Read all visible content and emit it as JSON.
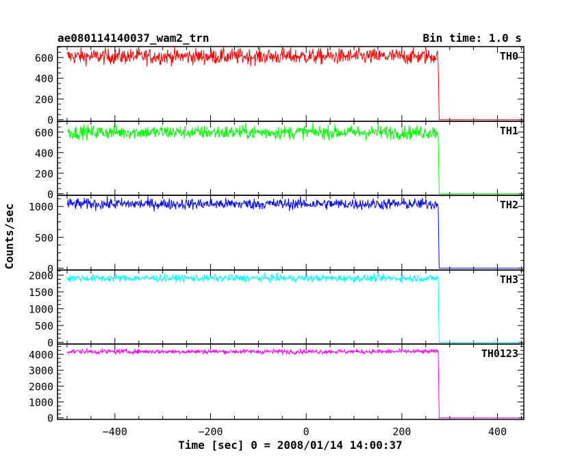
{
  "header": {
    "left_title": "ae080114140037_wam2_trn",
    "right_title": "Bin time: 1.0 s"
  },
  "chart_data": {
    "type": "line",
    "xlabel": "Time [sec] 0 = 2008/01/14 14:00:37",
    "ylabel": "Counts/sec",
    "xlim": [
      -520,
      455
    ],
    "x_ticks": [
      -400,
      -200,
      0,
      200,
      400
    ],
    "x_data_range": [
      -500,
      445
    ],
    "drop_time": 277,
    "panels": [
      {
        "name": "TH0",
        "color": "#ff0000",
        "ylim": [
          -15,
          705
        ],
        "y_ticks": [
          0,
          200,
          400,
          600
        ],
        "mean": 610,
        "noise": 38,
        "min_dip": 515,
        "floor": 0
      },
      {
        "name": "TH1",
        "color": "#00ff00",
        "ylim": [
          -15,
          705
        ],
        "y_ticks": [
          0,
          200,
          400,
          600
        ],
        "mean": 598,
        "noise": 34,
        "min_dip": 520,
        "floor": 0
      },
      {
        "name": "TH2",
        "color": "#0000ff",
        "ylim": [
          -30,
          1180
        ],
        "y_ticks": [
          0,
          500,
          1000
        ],
        "mean": 1040,
        "noise": 45,
        "min_dip": 910,
        "floor": 0
      },
      {
        "name": "TH3",
        "color": "#00ffff",
        "ylim": [
          -50,
          2150
        ],
        "y_ticks": [
          0,
          500,
          1000,
          1500,
          2000
        ],
        "mean": 1905,
        "noise": 55,
        "min_dip": 1770,
        "floor": 0
      },
      {
        "name": "TH0123",
        "color": "#ff00ff",
        "ylim": [
          -100,
          4650
        ],
        "y_ticks": [
          0,
          1000,
          2000,
          3000,
          4000
        ],
        "mean": 4175,
        "noise": 75,
        "min_dip": 3980,
        "floor": 0
      }
    ]
  }
}
